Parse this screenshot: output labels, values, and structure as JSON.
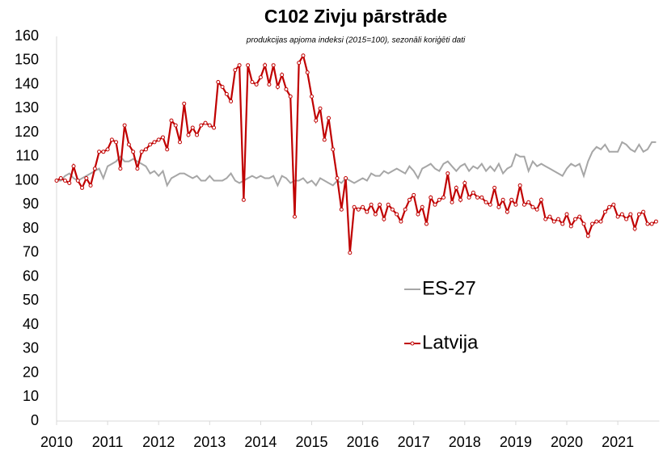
{
  "chart_data": {
    "type": "line",
    "title": "C102 Zivju pārstrāde",
    "subtitle": "produkcijas apjoma indeksi (2015=100), sezonāli koriģēti dati",
    "categories": [
      "2010",
      null,
      null,
      null,
      null,
      null,
      null,
      null,
      null,
      null,
      null,
      null,
      "2011",
      null,
      null,
      null,
      null,
      null,
      null,
      null,
      null,
      null,
      null,
      null,
      "2012",
      null,
      null,
      null,
      null,
      null,
      null,
      null,
      null,
      null,
      null,
      null,
      "2013",
      null,
      null,
      null,
      null,
      null,
      null,
      null,
      null,
      null,
      null,
      null,
      "2014",
      null,
      null,
      null,
      null,
      null,
      null,
      null,
      null,
      null,
      null,
      null,
      "2015",
      null,
      null,
      null,
      null,
      null,
      null,
      null,
      null,
      null,
      null,
      null,
      "2016",
      null,
      null,
      null,
      null,
      null,
      null,
      null,
      null,
      null,
      null,
      null,
      "2017",
      null,
      null,
      null,
      null,
      null,
      null,
      null,
      null,
      null,
      null,
      null,
      "2018",
      null,
      null,
      null,
      null,
      null,
      null,
      null,
      null,
      null,
      null,
      null,
      "2019",
      null,
      null,
      null,
      null,
      null,
      null,
      null,
      null,
      null,
      null,
      null,
      "2020",
      null,
      null,
      null,
      null,
      null,
      null,
      null,
      null,
      null,
      null,
      null,
      "2021",
      null,
      null,
      null,
      null,
      null,
      null,
      null,
      null,
      null
    ],
    "series": [
      {
        "name": "ES-27",
        "color": "#a6a6a6",
        "markers": false,
        "values": [
          100,
          100,
          102,
          103,
          101,
          100,
          101,
          102,
          103,
          104,
          105,
          101,
          106,
          107,
          108,
          110,
          108,
          108,
          109,
          108,
          107,
          106,
          103,
          104,
          102,
          104,
          98,
          101,
          102,
          103,
          103,
          102,
          101,
          102,
          100,
          100,
          102,
          100,
          100,
          100,
          101,
          103,
          100,
          99,
          100,
          101,
          102,
          101,
          102,
          101,
          101,
          102,
          98,
          102,
          101,
          99,
          100,
          100,
          101,
          99,
          100,
          98,
          101,
          100,
          99,
          98,
          100,
          99,
          101,
          100,
          99,
          100,
          101,
          100,
          103,
          102,
          102,
          104,
          103,
          104,
          105,
          104,
          103,
          106,
          104,
          101,
          105,
          106,
          107,
          105,
          104,
          107,
          108,
          106,
          104,
          106,
          107,
          104,
          106,
          105,
          107,
          104,
          106,
          104,
          107,
          103,
          105,
          106,
          111,
          110,
          110,
          104,
          108,
          106,
          107,
          106,
          105,
          104,
          103,
          102,
          105,
          107,
          106,
          107,
          102,
          108,
          112,
          114,
          113,
          115,
          112,
          112,
          112,
          116,
          115,
          113,
          112,
          115,
          112,
          113,
          116,
          116
        ]
      },
      {
        "name": "Latvija",
        "color": "#c00000",
        "markers": true,
        "values": [
          100,
          101,
          100,
          99,
          106,
          100,
          97,
          101,
          98,
          105,
          112,
          112,
          113,
          117,
          116,
          105,
          123,
          115,
          112,
          105,
          112,
          113,
          115,
          116,
          117,
          118,
          113,
          125,
          123,
          116,
          132,
          119,
          122,
          119,
          123,
          124,
          123,
          122,
          141,
          139,
          136,
          133,
          146,
          148,
          92,
          148,
          141,
          140,
          143,
          148,
          140,
          148,
          139,
          144,
          138,
          135,
          85,
          149,
          152,
          145,
          135,
          125,
          130,
          117,
          126,
          113,
          101,
          88,
          101,
          70,
          89,
          88,
          89,
          87,
          90,
          86,
          90,
          84,
          90,
          88,
          86,
          83,
          88,
          92,
          94,
          86,
          89,
          82,
          93,
          90,
          92,
          93,
          103,
          91,
          97,
          92,
          99,
          93,
          95,
          93,
          93,
          91,
          90,
          97,
          89,
          92,
          87,
          92,
          90,
          98,
          90,
          91,
          89,
          88,
          92,
          84,
          85,
          83,
          84,
          82,
          86,
          81,
          84,
          85,
          82,
          77,
          82,
          83,
          83,
          87,
          89,
          90,
          85,
          86,
          84,
          86,
          80,
          86,
          87,
          82,
          82,
          83
        ]
      }
    ],
    "ylim": [
      0,
      160
    ],
    "yticks": [
      0,
      10,
      20,
      30,
      40,
      50,
      60,
      70,
      80,
      90,
      100,
      110,
      120,
      130,
      140,
      150,
      160
    ],
    "grid": false,
    "legend": "center right"
  }
}
